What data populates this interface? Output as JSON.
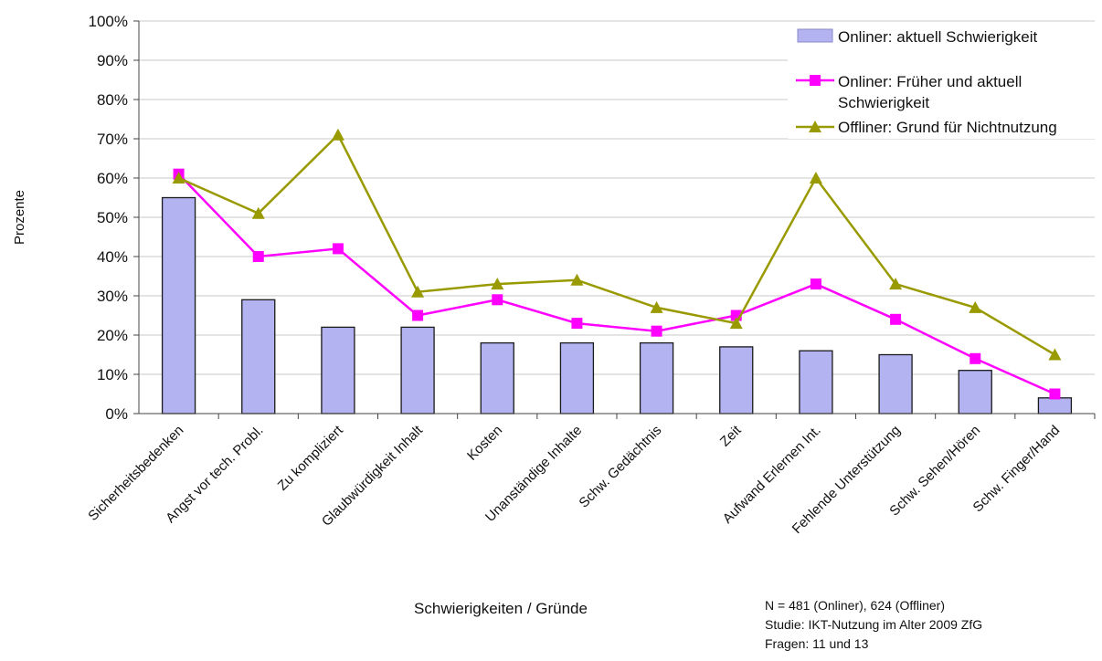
{
  "chart_data": {
    "type": "bar",
    "categories": [
      "Sicherheitsbedenken",
      "Angst vor tech. Probl.",
      "Zu kompliziert",
      "Glaubwürdigkeit Inhalt",
      "Kosten",
      "Unanständige Inhalte",
      "Schw. Gedächtnis",
      "Zeit",
      "Aufwand Erlernen Int.",
      "Fehlende Unterstützung",
      "Schw. Sehen/Hören",
      "Schw. Finger/Hand"
    ],
    "series": [
      {
        "name": "Onliner: aktuell Schwierigkeit",
        "type": "bar",
        "color": "#b3b3f2",
        "values": [
          55,
          29,
          22,
          22,
          18,
          18,
          18,
          17,
          16,
          15,
          11,
          4
        ]
      },
      {
        "name": "Onliner: Früher und aktuell Schwierigkeit",
        "type": "line",
        "color": "#ff00ff",
        "marker": "square",
        "values": [
          61,
          40,
          42,
          25,
          29,
          23,
          21,
          25,
          33,
          24,
          14,
          5
        ]
      },
      {
        "name": "Offliner: Grund für Nichtnutzung",
        "type": "line",
        "color": "#999900",
        "marker": "triangle",
        "values": [
          60,
          51,
          71,
          31,
          33,
          34,
          27,
          23,
          60,
          33,
          27,
          15
        ]
      }
    ],
    "y_ticks": [
      "0%",
      "10%",
      "20%",
      "30%",
      "40%",
      "50%",
      "60%",
      "70%",
      "80%",
      "90%",
      "100%"
    ],
    "ylim": [
      0,
      100
    ],
    "xlabel": "Schwierigkeiten / Gründe",
    "ylabel": "Prozente",
    "grid": true,
    "legend": "top-right",
    "legend_entries": [
      "Onliner: aktuell Schwierigkeit",
      "Onliner: Früher und aktuell",
      "Schwierigkeit",
      "Offliner: Grund für Nichtnutzung"
    ]
  },
  "notes": [
    "N = 481 (Onliner), 624 (Offliner)",
    "Studie: IKT-Nutzung im Alter 2009 ZfG",
    "Fragen: 11 und 13"
  ]
}
